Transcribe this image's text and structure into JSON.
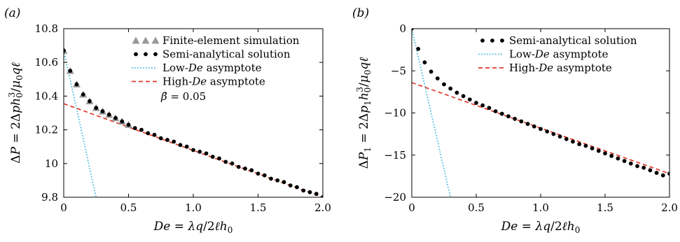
{
  "chart_data": [
    {
      "panel": "(a)",
      "type": "scatter",
      "xlabel": "De = λq/2ℓh0",
      "ylabel": "ΔP = 2Δph0^3/μ0qℓ",
      "xlim": [
        0,
        2.0
      ],
      "ylim": [
        9.8,
        10.8
      ],
      "xticks": [
        "0",
        "0.5",
        "1.0",
        "1.5",
        "2.0"
      ],
      "yticks": [
        "9.8",
        "10",
        "10.2",
        "10.4",
        "10.6",
        "10.8"
      ],
      "annotation": "β̃ = 0.05",
      "legend_position": "top-right",
      "series": [
        {
          "name": "Finite-element simulation",
          "kind": "triangle",
          "color": "#999999",
          "x": [
            0,
            0.05,
            0.1,
            0.15,
            0.2,
            0.25,
            0.3,
            0.35,
            0.4,
            0.45,
            0.5
          ],
          "y": [
            10.67,
            10.55,
            10.47,
            10.41,
            10.37,
            10.33,
            10.31,
            10.29,
            10.27,
            10.25,
            10.23
          ]
        },
        {
          "name": "Semi-analytical solution",
          "kind": "dot",
          "color": "#000000",
          "x": [
            0,
            0.05,
            0.1,
            0.15,
            0.2,
            0.25,
            0.3,
            0.35,
            0.4,
            0.45,
            0.5,
            0.55,
            0.6,
            0.65,
            0.7,
            0.75,
            0.8,
            0.85,
            0.9,
            0.95,
            1.0,
            1.05,
            1.1,
            1.15,
            1.2,
            1.25,
            1.3,
            1.35,
            1.4,
            1.45,
            1.5,
            1.55,
            1.6,
            1.65,
            1.7,
            1.75,
            1.8,
            1.85,
            1.9,
            1.95,
            2.0
          ],
          "y": [
            10.67,
            10.55,
            10.47,
            10.41,
            10.37,
            10.33,
            10.31,
            10.29,
            10.27,
            10.25,
            10.23,
            10.21,
            10.2,
            10.18,
            10.17,
            10.15,
            10.14,
            10.13,
            10.11,
            10.1,
            10.08,
            10.07,
            10.06,
            10.04,
            10.03,
            10.01,
            10.0,
            9.98,
            9.97,
            9.96,
            9.94,
            9.93,
            9.91,
            9.9,
            9.89,
            9.87,
            9.86,
            9.84,
            9.83,
            9.82,
            9.8
          ]
        },
        {
          "name": "Low-De asymptote",
          "kind": "dotted-line",
          "color": "#3ab4d8",
          "x": [
            0,
            0.25
          ],
          "y": [
            10.67,
            9.8
          ]
        },
        {
          "name": "High-De asymptote",
          "kind": "dashed-line",
          "color": "#e03a2a",
          "x": [
            0,
            2.0
          ],
          "y": [
            10.355,
            9.8
          ]
        }
      ]
    },
    {
      "panel": "(b)",
      "type": "scatter",
      "xlabel": "De = λq/2ℓh0",
      "ylabel": "ΔP1 = 2Δp1h0^3/μ0qℓ",
      "xlim": [
        0,
        2.0
      ],
      "ylim": [
        -20,
        0
      ],
      "xticks": [
        "0",
        "0.5",
        "1.0",
        "1.5",
        "2.0"
      ],
      "yticks": [
        "−20",
        "−15",
        "−10",
        "−5",
        "0"
      ],
      "legend_position": "top-right",
      "series": [
        {
          "name": "Semi-analytical solution",
          "kind": "dot",
          "color": "#000000",
          "x": [
            0,
            0.05,
            0.1,
            0.15,
            0.2,
            0.25,
            0.3,
            0.35,
            0.4,
            0.45,
            0.5,
            0.55,
            0.6,
            0.65,
            0.7,
            0.75,
            0.8,
            0.85,
            0.9,
            0.95,
            1.0,
            1.05,
            1.1,
            1.15,
            1.2,
            1.25,
            1.3,
            1.35,
            1.4,
            1.45,
            1.5,
            1.55,
            1.6,
            1.65,
            1.7,
            1.75,
            1.8,
            1.85,
            1.9,
            1.95,
            2.0
          ],
          "y": [
            0,
            -2.4,
            -4.0,
            -5.1,
            -5.9,
            -6.6,
            -7.1,
            -7.6,
            -8.0,
            -8.4,
            -8.8,
            -9.1,
            -9.4,
            -9.8,
            -10.1,
            -10.4,
            -10.7,
            -11.0,
            -11.3,
            -11.6,
            -11.9,
            -12.2,
            -12.5,
            -12.8,
            -13.1,
            -13.4,
            -13.7,
            -13.9,
            -14.2,
            -14.5,
            -14.8,
            -15.1,
            -15.4,
            -15.7,
            -16.0,
            -16.3,
            -16.5,
            -16.8,
            -17.1,
            -17.4,
            -17.2
          ]
        },
        {
          "name": "Low-De asymptote",
          "kind": "dotted-line",
          "color": "#3ab4d8",
          "x": [
            0,
            0.3
          ],
          "y": [
            0,
            -20
          ]
        },
        {
          "name": "High-De asymptote",
          "kind": "dashed-line",
          "color": "#e03a2a",
          "x": [
            0,
            2.0
          ],
          "y": [
            -6.4,
            -17.2
          ]
        }
      ]
    }
  ]
}
